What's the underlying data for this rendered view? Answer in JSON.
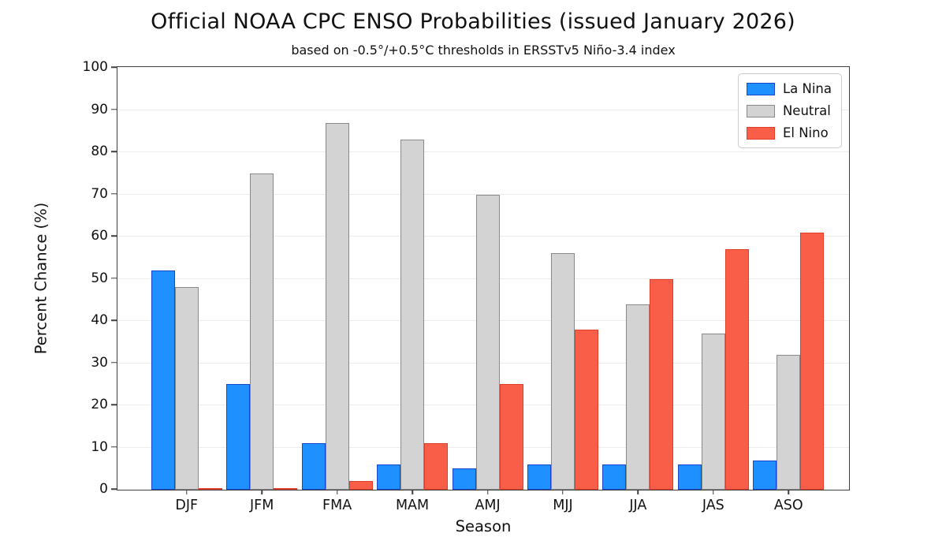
{
  "title": "Official NOAA CPC ENSO Probabilities (issued January 2026)",
  "subtitle": "based on -0.5°/+0.5°C thresholds in ERSSTv5 Niño-3.4 index",
  "chart_data": {
    "type": "bar",
    "categories": [
      "DJF",
      "JFM",
      "FMA",
      "MAM",
      "AMJ",
      "MJJ",
      "JJA",
      "JAS",
      "ASO"
    ],
    "series": [
      {
        "name": "La Nina",
        "fill": "#1E90FF",
        "edge": "#1845CE",
        "values": [
          52,
          25,
          11,
          6,
          5,
          6,
          6,
          6,
          7
        ]
      },
      {
        "name": "Neutral",
        "fill": "#D3D3D3",
        "edge": "#898989",
        "values": [
          48,
          75,
          87,
          83,
          70,
          56,
          44,
          37,
          32
        ]
      },
      {
        "name": "El Nino",
        "fill": "#F95F48",
        "edge": "#E03C28",
        "values": [
          0,
          0,
          2,
          11,
          25,
          38,
          50,
          57,
          61
        ]
      }
    ],
    "xlabel": "Season",
    "ylabel": "Percent Chance (%)",
    "ylim": [
      0,
      100
    ],
    "yticks": [
      0,
      10,
      20,
      30,
      40,
      50,
      60,
      70,
      80,
      90,
      100
    ],
    "grid": "horizontal",
    "legend_position": "top-right",
    "colors": {
      "spine": "#3f3f3f",
      "gridline": "#ececec",
      "la_nina_fill": "#1E90FF",
      "la_nina_edge": "#1845CE",
      "neutral_fill": "#D3D3D3",
      "neutral_edge": "#898989",
      "el_nino_fill": "#F95F48",
      "el_nino_edge": "#E03C28"
    }
  }
}
